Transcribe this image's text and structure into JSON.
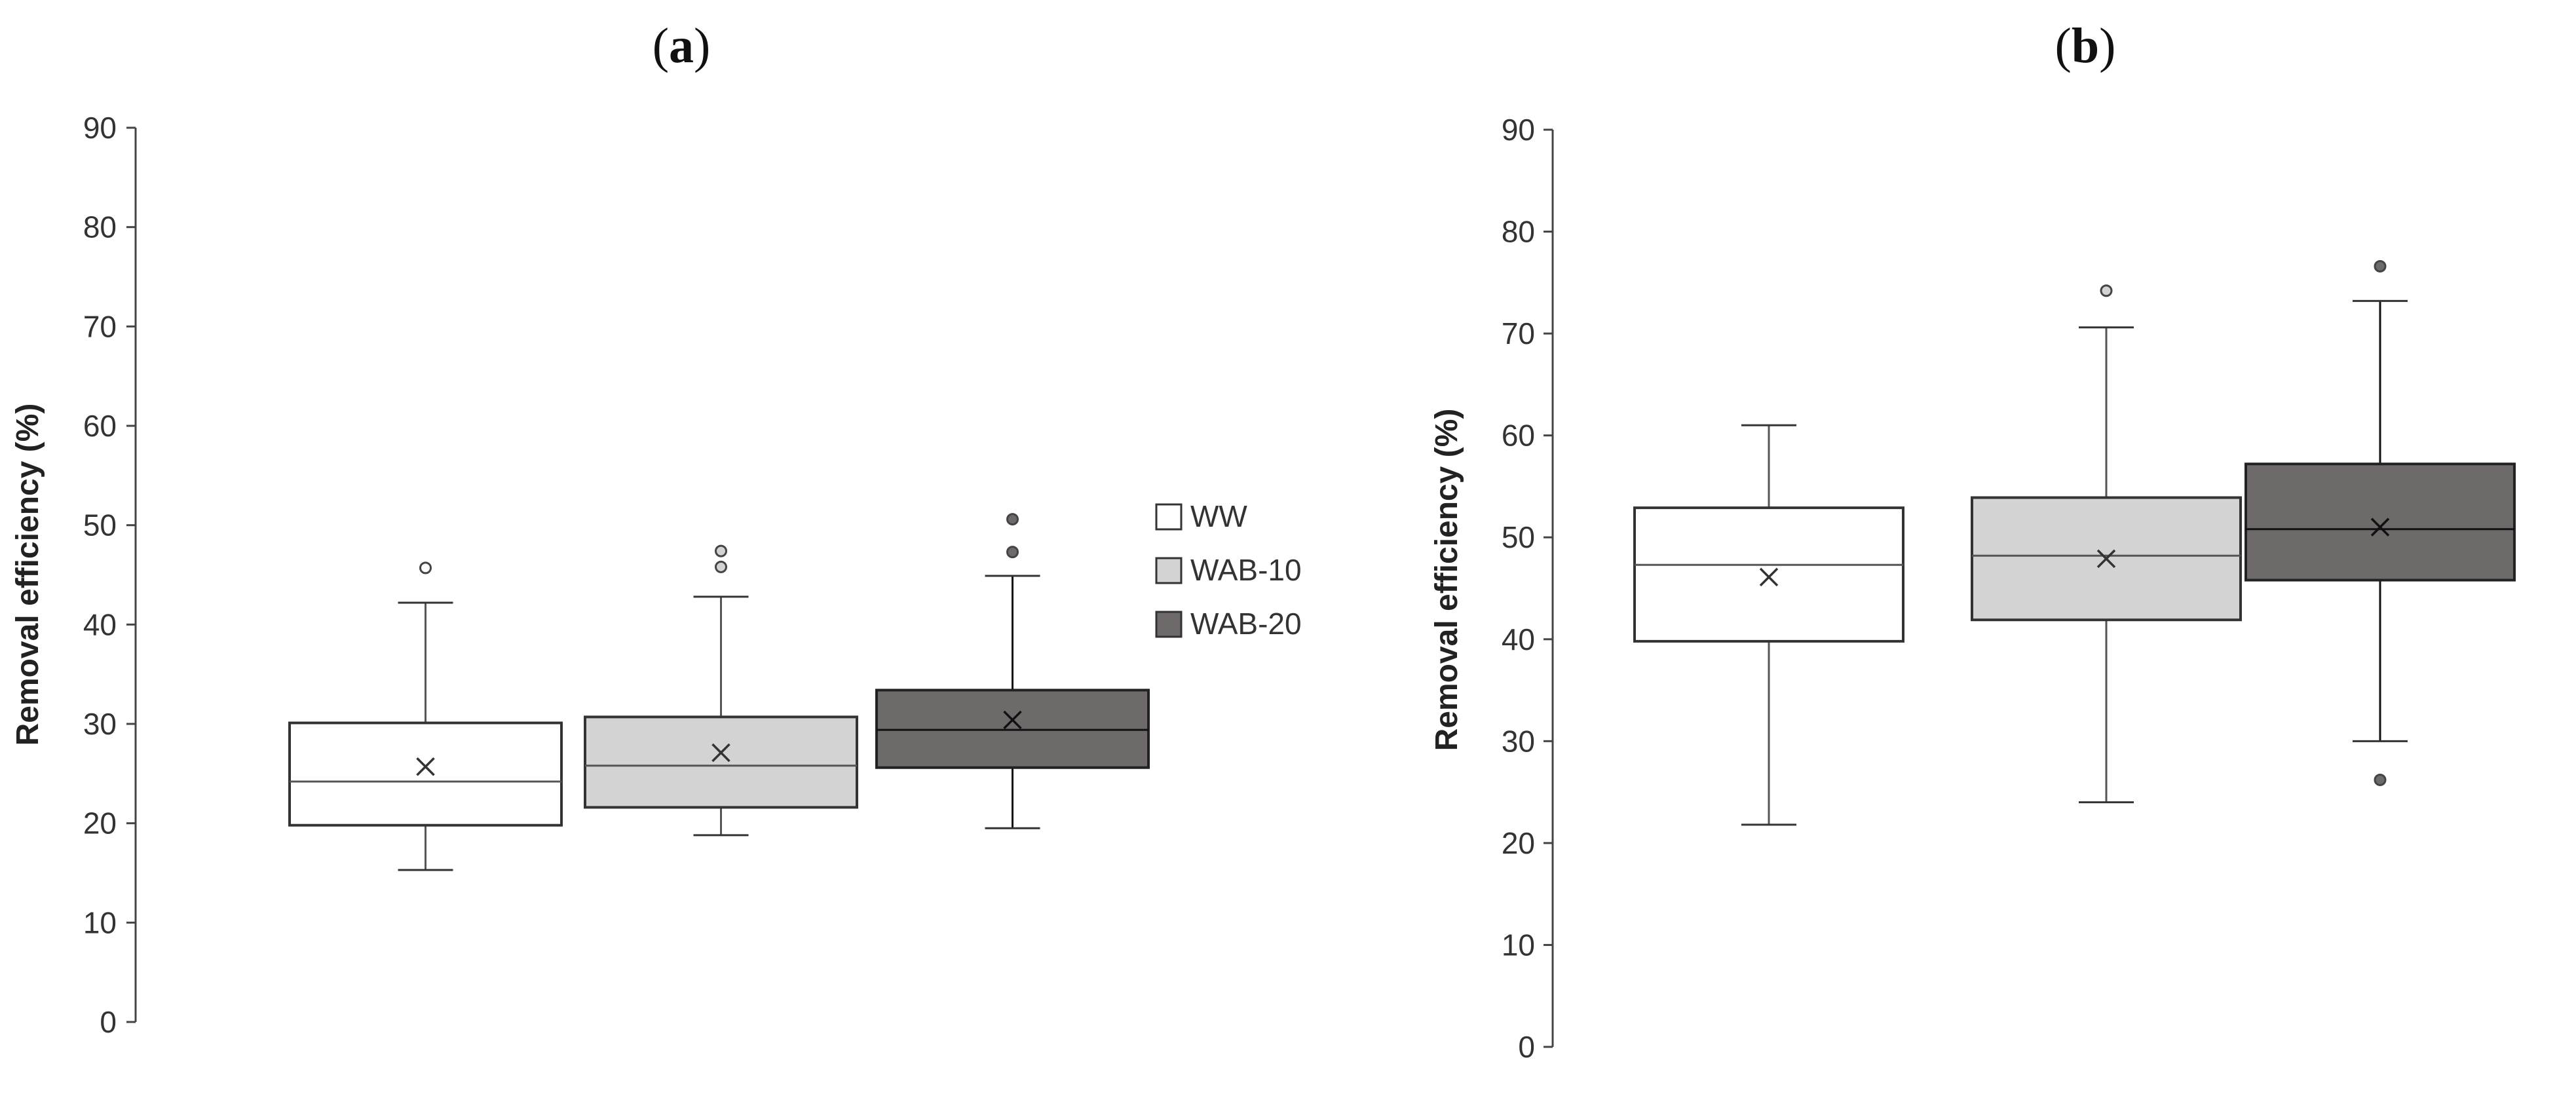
{
  "chart_data": [
    {
      "type": "box",
      "panel_label": "(a)",
      "panel_letter": "a",
      "ylabel": "Removal efficiency (%)",
      "ylim": [
        0,
        90
      ],
      "yticks": [
        0,
        10,
        20,
        30,
        40,
        50,
        60,
        70,
        80,
        90
      ],
      "grid": false,
      "legend_position": "right",
      "series": [
        {
          "name": "WW",
          "color": "#ffffff",
          "whisker_low": 15.3,
          "q1": 19.8,
          "median": 24.2,
          "q3": 30.1,
          "whisker_high": 42.2,
          "mean": 25.7,
          "outliers": [
            45.7
          ]
        },
        {
          "name": "WAB-10",
          "color": "#d4d3d4",
          "whisker_low": 18.8,
          "q1": 21.6,
          "median": 25.8,
          "q3": 30.7,
          "whisker_high": 42.8,
          "mean": 27.1,
          "outliers": [
            45.8,
            47.4
          ]
        },
        {
          "name": "WAB-20",
          "color": "#6e6a6a",
          "whisker_low": 19.5,
          "q1": 25.6,
          "median": 29.4,
          "q3": 33.4,
          "whisker_high": 44.9,
          "mean": 30.4,
          "outliers": [
            47.3,
            50.6
          ]
        }
      ]
    },
    {
      "type": "box",
      "panel_label": "(b)",
      "panel_letter": "b",
      "ylabel": "Removal efficiency (%)",
      "ylim": [
        0,
        90
      ],
      "yticks": [
        0,
        10,
        20,
        30,
        40,
        50,
        60,
        70,
        80,
        90
      ],
      "grid": false,
      "series": [
        {
          "name": "WW",
          "color": "#ffffff",
          "whisker_low": 21.8,
          "q1": 39.8,
          "median": 47.3,
          "q3": 52.9,
          "whisker_high": 61.0,
          "mean": 46.1,
          "outliers": []
        },
        {
          "name": "WAB-10",
          "color": "#d4d3d4",
          "whisker_low": 24.0,
          "q1": 41.9,
          "median": 48.2,
          "q3": 53.9,
          "whisker_high": 70.6,
          "mean": 47.9,
          "outliers": [
            74.2
          ]
        },
        {
          "name": "WAB-20",
          "color": "#6e6a6a",
          "whisker_low": 30.0,
          "q1": 45.8,
          "median": 50.8,
          "q3": 57.2,
          "whisker_high": 73.2,
          "mean": 51.0,
          "outliers": [
            26.2,
            76.6
          ]
        }
      ]
    }
  ],
  "legend": [
    {
      "label": "WW",
      "color": "#ffffff"
    },
    {
      "label": "WAB-10",
      "color": "#d4d3d4"
    },
    {
      "label": "WAB-20",
      "color": "#6e6a6a"
    }
  ]
}
